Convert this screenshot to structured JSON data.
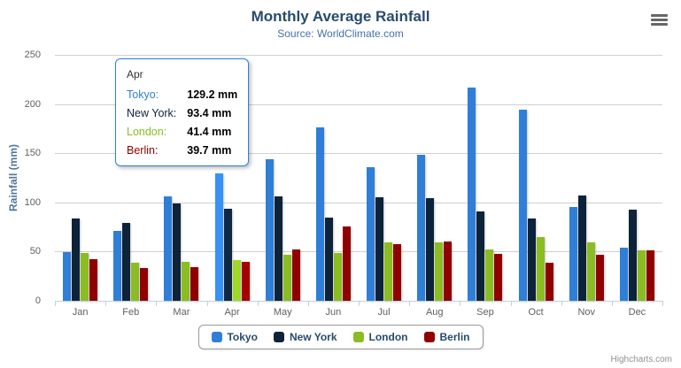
{
  "chart_data": {
    "type": "bar",
    "title": "Monthly Average Rainfall",
    "subtitle": "Source: WorldClimate.com",
    "ylabel": "Rainfall (mm)",
    "ylim": [
      0,
      250
    ],
    "yticks": [
      0,
      50,
      100,
      150,
      200,
      250
    ],
    "grid": true,
    "legend_position": "bottom",
    "categories": [
      "Jan",
      "Feb",
      "Mar",
      "Apr",
      "May",
      "Jun",
      "Jul",
      "Aug",
      "Sep",
      "Oct",
      "Nov",
      "Dec"
    ],
    "series": [
      {
        "name": "Tokyo",
        "color": "#2f7ed8",
        "values": [
          49.9,
          71.5,
          106.4,
          129.2,
          144.0,
          176.0,
          135.6,
          148.5,
          216.4,
          194.1,
          95.6,
          54.4
        ]
      },
      {
        "name": "New York",
        "color": "#0d233a",
        "values": [
          83.6,
          78.8,
          98.5,
          93.4,
          106.0,
          84.5,
          105.0,
          104.3,
          91.2,
          83.5,
          106.6,
          92.3
        ]
      },
      {
        "name": "London",
        "color": "#8bbc21",
        "values": [
          48.9,
          38.8,
          39.3,
          41.4,
          47.0,
          48.3,
          59.0,
          59.6,
          52.4,
          65.2,
          59.3,
          51.2
        ]
      },
      {
        "name": "Berlin",
        "color": "#910000",
        "values": [
          42.4,
          33.2,
          34.5,
          39.7,
          52.6,
          75.5,
          57.4,
          60.4,
          47.6,
          39.1,
          46.8,
          51.1
        ]
      }
    ]
  },
  "tooltip": {
    "header": "Apr",
    "border_color": "#2f7ed8",
    "rows": [
      {
        "name": "Tokyo:",
        "value": "129.2 mm",
        "color": "#2f7ed8"
      },
      {
        "name": "New York:",
        "value": "93.4 mm",
        "color": "#0d233a"
      },
      {
        "name": "London:",
        "value": "41.4 mm",
        "color": "#8bbc21"
      },
      {
        "name": "Berlin:",
        "value": "39.7 mm",
        "color": "#910000"
      }
    ]
  },
  "credits": "Highcharts.com"
}
